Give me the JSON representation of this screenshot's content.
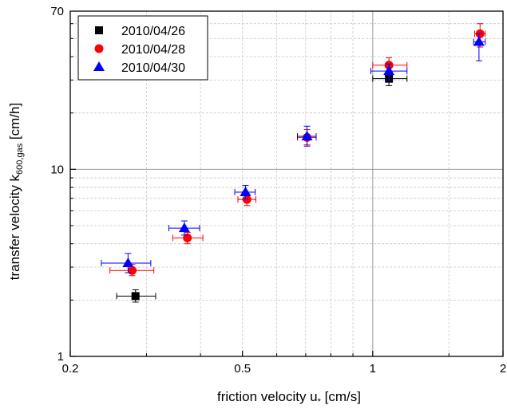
{
  "chart_data": {
    "type": "scatter",
    "xscale": "log",
    "yscale": "log",
    "xlim": [
      0.2,
      2
    ],
    "ylim": [
      1,
      70
    ],
    "xticks": [
      "0.2",
      "0.5",
      "1",
      "2"
    ],
    "yticks": [
      "1",
      "10",
      "70"
    ],
    "xlabel": "friction velocity u* [cm/s]",
    "ylabel": "transfer velocity k600,gas [cm/h]",
    "grid": true,
    "legend_position": "top-left",
    "series": [
      {
        "name": "2010/04/26",
        "marker": "square",
        "color": "#000000",
        "points": [
          {
            "x": 0.283,
            "y": 2.1,
            "xerr": [
              0.256,
              0.315
            ],
            "yerr": [
              1.95,
              2.27
            ]
          },
          {
            "x": 1.09,
            "y": 30.5,
            "xerr": [
              1.0,
              1.2
            ],
            "yerr": [
              28.0,
              33.0
            ]
          }
        ]
      },
      {
        "name": "2010/04/28",
        "marker": "circle",
        "color": "#ff0000",
        "points": [
          {
            "x": 0.278,
            "y": 2.88,
            "xerr": [
              0.247,
              0.312
            ],
            "yerr": [
              2.7,
              3.1
            ]
          },
          {
            "x": 0.373,
            "y": 4.3,
            "xerr": [
              0.345,
              0.405
            ],
            "yerr": [
              4.0,
              4.6
            ]
          },
          {
            "x": 0.512,
            "y": 6.9,
            "xerr": [
              0.488,
              0.537
            ],
            "yerr": [
              6.4,
              7.4
            ]
          },
          {
            "x": 0.705,
            "y": 14.8,
            "xerr": [
              0.67,
              0.74
            ],
            "yerr": [
              13.5,
              16.3
            ]
          },
          {
            "x": 1.09,
            "y": 36.0,
            "xerr": [
              1.0,
              1.2
            ],
            "yerr": [
              33.0,
              39.5
            ]
          },
          {
            "x": 1.77,
            "y": 53.0,
            "xerr": [
              1.72,
              1.82
            ],
            "yerr": [
              45.0,
              60.0
            ]
          }
        ]
      },
      {
        "name": "2010/04/30",
        "marker": "triangle",
        "color": "#0000ff",
        "points": [
          {
            "x": 0.272,
            "y": 3.15,
            "xerr": [
              0.236,
              0.307
            ],
            "yerr": [
              2.8,
              3.55
            ]
          },
          {
            "x": 0.367,
            "y": 4.85,
            "xerr": [
              0.338,
              0.398
            ],
            "yerr": [
              4.45,
              5.3
            ]
          },
          {
            "x": 0.508,
            "y": 7.55,
            "xerr": [
              0.48,
              0.535
            ],
            "yerr": [
              6.95,
              8.2
            ]
          },
          {
            "x": 0.705,
            "y": 15.0,
            "xerr": [
              0.67,
              0.74
            ],
            "yerr": [
              13.3,
              17.0
            ]
          },
          {
            "x": 1.09,
            "y": 33.5,
            "xerr": [
              0.99,
              1.2
            ],
            "yerr": [
              30.0,
              36.5
            ]
          },
          {
            "x": 1.76,
            "y": 48.0,
            "xerr": [
              1.71,
              1.82
            ],
            "yerr": [
              38.0,
              53.0
            ]
          }
        ]
      }
    ]
  },
  "labels": {
    "xlabel_main": "friction velocity u",
    "xlabel_sub": "*",
    "xlabel_unit": " [cm/s]",
    "ylabel_main": "transfer velocity k",
    "ylabel_sub": "600,gas",
    "ylabel_unit": " [cm/h]"
  }
}
